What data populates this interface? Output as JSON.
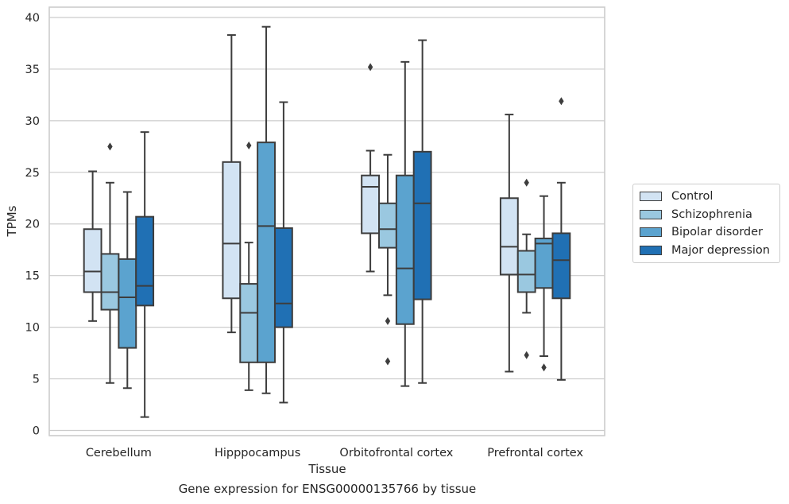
{
  "caption": "Gene expression for ENSG00000135766 by tissue",
  "chart_data": {
    "type": "box",
    "xlabel": "Tissue",
    "ylabel": "TPMs",
    "ylim": [
      -0.5,
      41
    ],
    "yticks": [
      0,
      5,
      10,
      15,
      20,
      25,
      30,
      35,
      40
    ],
    "grid": "horizontal",
    "legend_position": "right",
    "categories": [
      "Cerebellum",
      "Hipppocampus",
      "Orbitofrontal cortex",
      "Prefrontal cortex"
    ],
    "series": [
      {
        "name": "Control",
        "color": "#d2e3f3",
        "boxes": [
          {
            "whisker_low": 10.6,
            "q1": 13.4,
            "median": 15.4,
            "q3": 19.5,
            "whisker_high": 25.1,
            "outliers": []
          },
          {
            "whisker_low": 9.5,
            "q1": 12.8,
            "median": 18.1,
            "q3": 26.0,
            "whisker_high": 38.3,
            "outliers": []
          },
          {
            "whisker_low": 15.4,
            "q1": 19.1,
            "median": 23.6,
            "q3": 24.7,
            "whisker_high": 27.1,
            "outliers": [
              35.2
            ]
          },
          {
            "whisker_low": 5.7,
            "q1": 15.1,
            "median": 17.8,
            "q3": 22.5,
            "whisker_high": 30.6,
            "outliers": []
          }
        ]
      },
      {
        "name": "Schizophrenia",
        "color": "#9ac8e0",
        "boxes": [
          {
            "whisker_low": 4.6,
            "q1": 11.7,
            "median": 13.4,
            "q3": 17.1,
            "whisker_high": 24.0,
            "outliers": [
              27.5
            ]
          },
          {
            "whisker_low": 3.9,
            "q1": 6.6,
            "median": 11.4,
            "q3": 14.2,
            "whisker_high": 18.2,
            "outliers": [
              27.6
            ]
          },
          {
            "whisker_low": 13.1,
            "q1": 17.7,
            "median": 19.5,
            "q3": 22.0,
            "whisker_high": 26.7,
            "outliers": [
              10.6,
              6.7
            ]
          },
          {
            "whisker_low": 11.4,
            "q1": 13.4,
            "median": 15.1,
            "q3": 17.4,
            "whisker_high": 19.0,
            "outliers": [
              24.0,
              7.3
            ]
          }
        ]
      },
      {
        "name": "Bipolar disorder",
        "color": "#5ba3cf",
        "boxes": [
          {
            "whisker_low": 4.1,
            "q1": 8.0,
            "median": 12.9,
            "q3": 16.6,
            "whisker_high": 23.1,
            "outliers": []
          },
          {
            "whisker_low": 3.6,
            "q1": 6.6,
            "median": 19.8,
            "q3": 27.9,
            "whisker_high": 39.1,
            "outliers": []
          },
          {
            "whisker_low": 4.3,
            "q1": 10.3,
            "median": 15.7,
            "q3": 24.7,
            "whisker_high": 35.7,
            "outliers": []
          },
          {
            "whisker_low": 7.2,
            "q1": 13.8,
            "median": 18.1,
            "q3": 18.6,
            "whisker_high": 22.7,
            "outliers": [
              6.1
            ]
          }
        ]
      },
      {
        "name": "Major depression",
        "color": "#2070b4",
        "boxes": [
          {
            "whisker_low": 1.3,
            "q1": 12.1,
            "median": 14.0,
            "q3": 20.7,
            "whisker_high": 28.9,
            "outliers": []
          },
          {
            "whisker_low": 2.7,
            "q1": 10.0,
            "median": 12.3,
            "q3": 19.6,
            "whisker_high": 31.8,
            "outliers": []
          },
          {
            "whisker_low": 4.6,
            "q1": 12.7,
            "median": 22.0,
            "q3": 27.0,
            "whisker_high": 37.8,
            "outliers": []
          },
          {
            "whisker_low": 4.9,
            "q1": 12.8,
            "median": 16.5,
            "q3": 19.1,
            "whisker_high": 24.0,
            "outliers": [
              31.9
            ]
          }
        ]
      }
    ]
  }
}
